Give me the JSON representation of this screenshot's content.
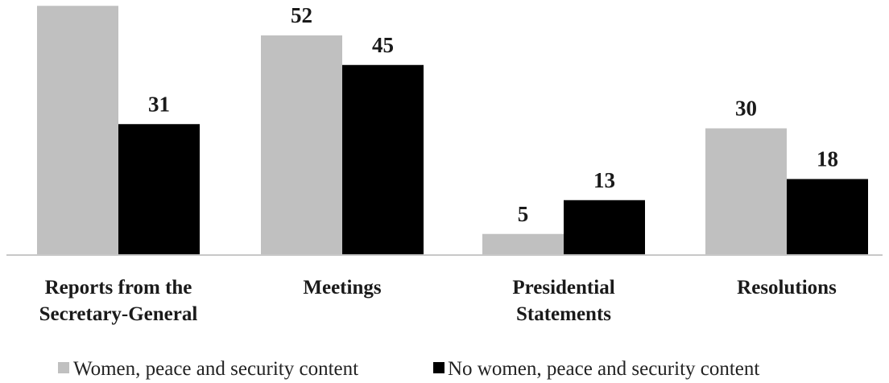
{
  "chart_data": {
    "type": "bar",
    "categories": [
      [
        "Reports from the",
        "Secretary-General"
      ],
      [
        "Meetings"
      ],
      [
        "Presidential",
        "Statements"
      ],
      [
        "Resolutions"
      ]
    ],
    "series": [
      {
        "name": "Women, peace and security content",
        "values": [
          59,
          52,
          5,
          30
        ],
        "color": "#c0c0c0"
      },
      {
        "name": "No women, peace and security content",
        "values": [
          31,
          45,
          13,
          18
        ],
        "color": "#000000"
      }
    ],
    "title": "",
    "xlabel": "",
    "ylabel": "",
    "ylim": [
      0,
      60
    ],
    "grid": false,
    "legend": "bottom",
    "axis_color": "#c8c8c8"
  }
}
